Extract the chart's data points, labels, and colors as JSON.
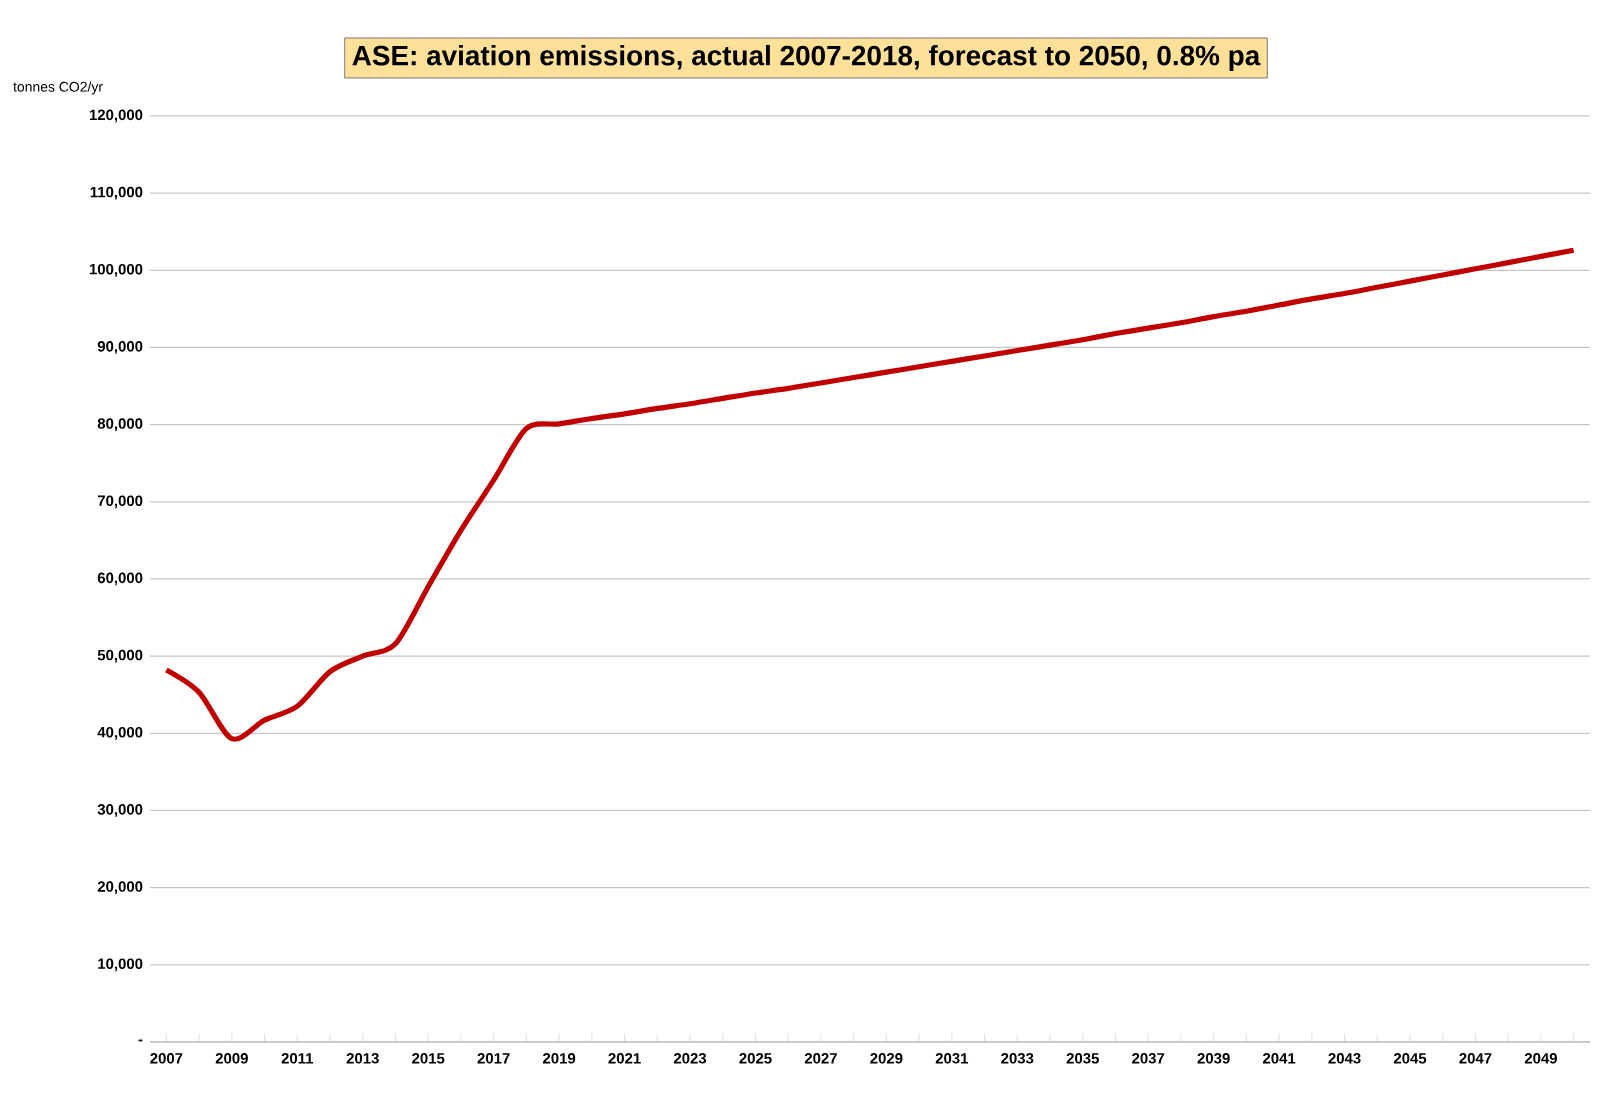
{
  "chart_data": {
    "type": "line",
    "title": "ASE: aviation emissions, actual 2007-2018, forecast to 2050, 0.8% pa",
    "ylabel": "tonnes CO2/yr",
    "categories": [
      "2007",
      null,
      "2009",
      null,
      "2011",
      null,
      "2013",
      null,
      "2015",
      null,
      "2017",
      null,
      "2019",
      null,
      "2021",
      null,
      "2023",
      null,
      "2025",
      null,
      "2027",
      null,
      "2029",
      null,
      "2031",
      null,
      "2033",
      null,
      "2035",
      null,
      "2037",
      null,
      "2039",
      null,
      "2041",
      null,
      "2043",
      null,
      "2045",
      null,
      "2047",
      null,
      "2049",
      null
    ],
    "series": [
      {
        "color": "#c00000",
        "values": [
          48200,
          45300,
          39300,
          41700,
          43500,
          48000,
          50000,
          51600,
          59000,
          66300,
          72800,
          79500,
          80100,
          80800,
          81400,
          82100,
          82700,
          83400,
          84100,
          84700,
          85400,
          86100,
          86800,
          87500,
          88200,
          88900,
          89600,
          90300,
          91000,
          91800,
          92500,
          93200,
          94000,
          94700,
          95500,
          96300,
          97000,
          97800,
          98600,
          99400,
          100200,
          101000,
          101800,
          102600
        ]
      }
    ],
    "ylim": [
      0,
      120000
    ],
    "yticks": [
      {
        "value": 0,
        "label": "-"
      },
      {
        "value": 10000,
        "label": "10,000"
      },
      {
        "value": 20000,
        "label": "20,000"
      },
      {
        "value": 30000,
        "label": "30,000"
      },
      {
        "value": 40000,
        "label": "40,000"
      },
      {
        "value": 50000,
        "label": "50,000"
      },
      {
        "value": 60000,
        "label": "60,000"
      },
      {
        "value": 70000,
        "label": "70,000"
      },
      {
        "value": 80000,
        "label": "80,000"
      },
      {
        "value": 90000,
        "label": "90,000"
      },
      {
        "value": 100000,
        "label": "100,000"
      },
      {
        "value": 110000,
        "label": "110,000"
      },
      {
        "value": 120000,
        "label": "120,000"
      }
    ],
    "grid": "y",
    "marker": "none",
    "line_style": "solid"
  }
}
